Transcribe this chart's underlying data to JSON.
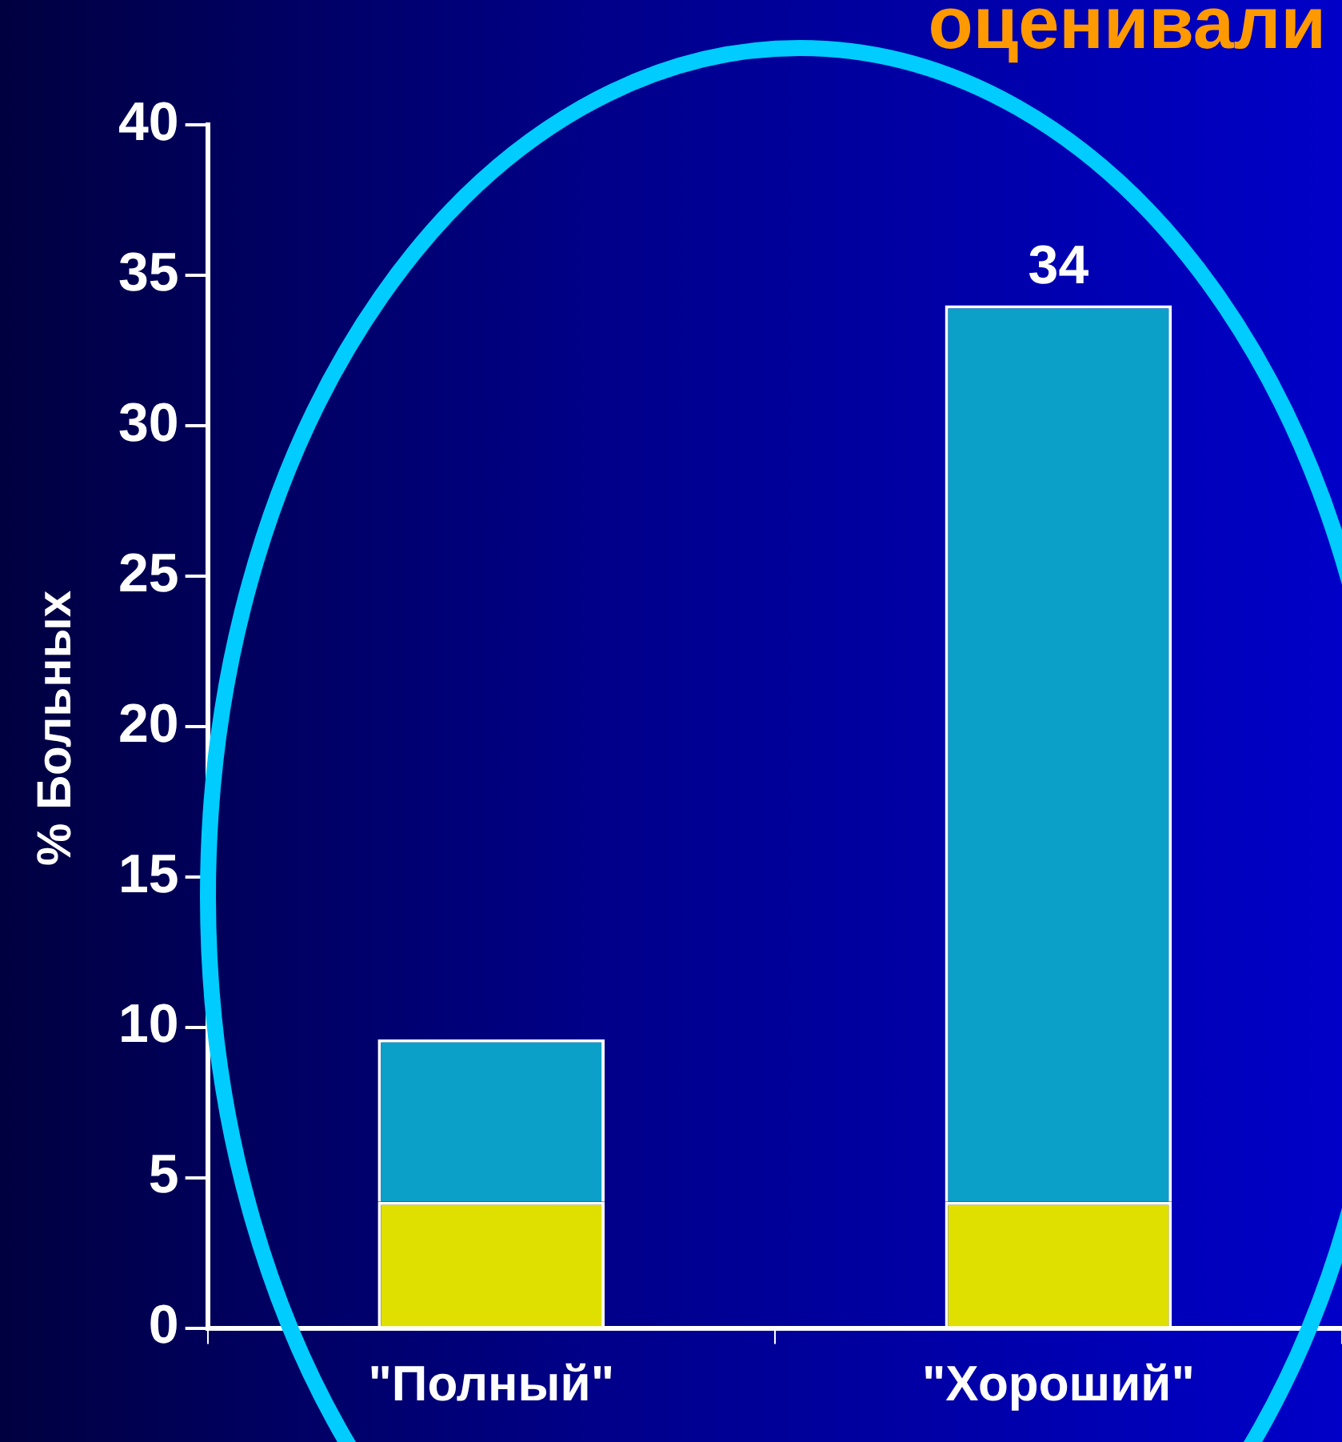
{
  "chart_data": {
    "type": "bar",
    "title": "оценивали",
    "ylabel": "% Больных",
    "categories": [
      "\"Полный\"",
      "\"Хороший\""
    ],
    "stacked": true,
    "series": [
      {
        "color": "#e0e000",
        "values": [
          4.2,
          4.2
        ]
      },
      {
        "color": "#0aa0c8",
        "values": [
          5.4,
          29.8
        ]
      }
    ],
    "totals": [
      null,
      "34"
    ],
    "ylim": [
      0,
      40
    ],
    "yticks": [
      0,
      5,
      10,
      15,
      20,
      25,
      30,
      35,
      40
    ],
    "grid": false,
    "legend": false
  }
}
